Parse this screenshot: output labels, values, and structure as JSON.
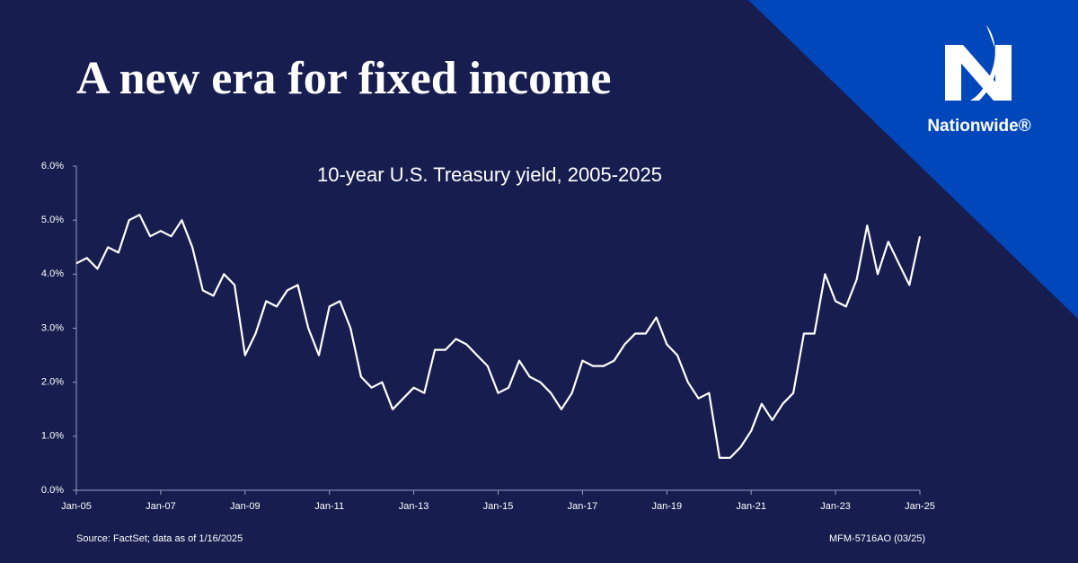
{
  "header": {
    "title": "A new era for fixed income",
    "brand": "Nationwide®"
  },
  "chart_data": {
    "type": "line",
    "title": "10-year U.S. Treasury yield, 2005-2025",
    "color": "#ffffff",
    "x": [
      "Jan-05",
      "Apr-05",
      "Jul-05",
      "Oct-05",
      "Jan-06",
      "Apr-06",
      "Jul-06",
      "Oct-06",
      "Jan-07",
      "Apr-07",
      "Jul-07",
      "Oct-07",
      "Jan-08",
      "Apr-08",
      "Jul-08",
      "Oct-08",
      "Jan-09",
      "Apr-09",
      "Jul-09",
      "Oct-09",
      "Jan-10",
      "Apr-10",
      "Jul-10",
      "Oct-10",
      "Jan-11",
      "Apr-11",
      "Jul-11",
      "Oct-11",
      "Jan-12",
      "Apr-12",
      "Jul-12",
      "Oct-12",
      "Jan-13",
      "Apr-13",
      "Jul-13",
      "Oct-13",
      "Jan-14",
      "Apr-14",
      "Jul-14",
      "Oct-14",
      "Jan-15",
      "Apr-15",
      "Jul-15",
      "Oct-15",
      "Jan-16",
      "Apr-16",
      "Jul-16",
      "Oct-16",
      "Jan-17",
      "Apr-17",
      "Jul-17",
      "Oct-17",
      "Jan-18",
      "Apr-18",
      "Jul-18",
      "Oct-18",
      "Jan-19",
      "Apr-19",
      "Jul-19",
      "Oct-19",
      "Jan-20",
      "Apr-20",
      "Jul-20",
      "Oct-20",
      "Jan-21",
      "Apr-21",
      "Jul-21",
      "Oct-21",
      "Jan-22",
      "Apr-22",
      "Jul-22",
      "Oct-22",
      "Jan-23",
      "Apr-23",
      "Jul-23",
      "Oct-23",
      "Jan-24",
      "Apr-24",
      "Jul-24",
      "Oct-24",
      "Jan-25"
    ],
    "values": [
      4.2,
      4.3,
      4.1,
      4.5,
      4.4,
      5.0,
      5.1,
      4.7,
      4.8,
      4.7,
      5.0,
      4.5,
      3.7,
      3.6,
      4.0,
      3.8,
      2.5,
      2.9,
      3.5,
      3.4,
      3.7,
      3.8,
      3.0,
      2.5,
      3.4,
      3.5,
      3.0,
      2.1,
      1.9,
      2.0,
      1.5,
      1.7,
      1.9,
      1.8,
      2.6,
      2.6,
      2.8,
      2.7,
      2.5,
      2.3,
      1.8,
      1.9,
      2.4,
      2.1,
      2.0,
      1.8,
      1.5,
      1.8,
      2.4,
      2.3,
      2.3,
      2.4,
      2.7,
      2.9,
      2.9,
      3.2,
      2.7,
      2.5,
      2.0,
      1.7,
      1.8,
      0.6,
      0.6,
      0.8,
      1.1,
      1.6,
      1.3,
      1.6,
      1.8,
      2.9,
      2.9,
      4.0,
      3.5,
      3.4,
      3.9,
      4.9,
      4.0,
      4.6,
      4.2,
      3.8,
      4.7
    ],
    "xticks": [
      "Jan-05",
      "Jan-07",
      "Jan-09",
      "Jan-11",
      "Jan-13",
      "Jan-15",
      "Jan-17",
      "Jan-19",
      "Jan-21",
      "Jan-23",
      "Jan-25"
    ],
    "ylim": [
      0,
      6
    ],
    "yticks": [
      {
        "value": 0,
        "label": "0.0%"
      },
      {
        "value": 1,
        "label": "1.0%"
      },
      {
        "value": 2,
        "label": "2.0%"
      },
      {
        "value": 3,
        "label": "3.0%"
      },
      {
        "value": 4,
        "label": "4.0%"
      },
      {
        "value": 5,
        "label": "5.0%"
      },
      {
        "value": 6,
        "label": "6.0%"
      }
    ]
  },
  "footer": {
    "source": "Source: FactSet; data as of 1/16/2025",
    "code": "MFM-5716AO (03/25)"
  }
}
